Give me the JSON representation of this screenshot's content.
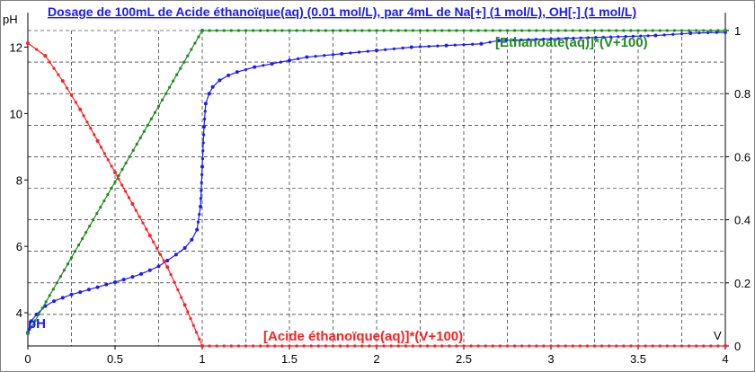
{
  "chart_data": {
    "type": "line",
    "title": "Dosage de 100mL de Acide éthanoïque(aq) (0.01 mol/L),  par 4mL  de Na[+] (1 mol/L), OH[-] (1 mol/L)",
    "ylabel_left": "pH",
    "xlabel": "V",
    "xlim": [
      0,
      4
    ],
    "ylim_left": [
      3.0,
      12.5
    ],
    "ylim_right": [
      0,
      1
    ],
    "x_ticks": [
      "0",
      "0.5",
      "1",
      "1.5",
      "2",
      "2.5",
      "3",
      "3.5",
      "4"
    ],
    "y_ticks_left": [
      "4",
      "6",
      "8",
      "10",
      "12"
    ],
    "y_ticks_right": [
      "0",
      "0.2",
      "0.4",
      "0.6",
      "0.8",
      "1"
    ],
    "grid": true,
    "series": [
      {
        "name": "pH",
        "axis": "left",
        "color": "#1a1aff",
        "x": [
          0,
          0.02,
          0.05,
          0.1,
          0.15,
          0.2,
          0.25,
          0.3,
          0.35,
          0.4,
          0.45,
          0.5,
          0.55,
          0.6,
          0.65,
          0.7,
          0.75,
          0.8,
          0.85,
          0.9,
          0.94,
          0.97,
          0.99,
          1.0,
          1.01,
          1.02,
          1.04,
          1.06,
          1.1,
          1.15,
          1.2,
          1.3,
          1.4,
          1.5,
          1.6,
          1.8,
          2.0,
          2.2,
          2.4,
          2.6,
          2.7,
          3.6,
          3.8,
          4.0
        ],
        "y": [
          3.4,
          3.75,
          3.95,
          4.2,
          4.35,
          4.45,
          4.55,
          4.62,
          4.7,
          4.77,
          4.85,
          4.92,
          5.0,
          5.08,
          5.17,
          5.28,
          5.4,
          5.57,
          5.75,
          5.95,
          6.2,
          6.5,
          7.2,
          8.4,
          9.6,
          10.3,
          10.6,
          10.8,
          11.0,
          11.15,
          11.25,
          11.4,
          11.5,
          11.6,
          11.7,
          11.8,
          11.9,
          12.0,
          12.05,
          12.1,
          12.2,
          12.35,
          12.42,
          12.45
        ]
      },
      {
        "name": "[Ethanoate(aq)]*(V+100)",
        "axis": "right",
        "color": "#1f8a1f",
        "x": [
          0,
          1,
          4
        ],
        "y": [
          0.04,
          1.0,
          1.0
        ]
      },
      {
        "name": "[Acide éthanoïque(aq)]*(V+100)",
        "axis": "right",
        "color": "#ff2020",
        "x": [
          0,
          0.1,
          0.2,
          0.3,
          0.4,
          0.5,
          0.6,
          0.7,
          0.8,
          0.9,
          1,
          4
        ],
        "y": [
          0.96,
          0.92,
          0.84,
          0.75,
          0.65,
          0.55,
          0.45,
          0.35,
          0.25,
          0.13,
          0.0,
          0.0
        ]
      }
    ]
  }
}
